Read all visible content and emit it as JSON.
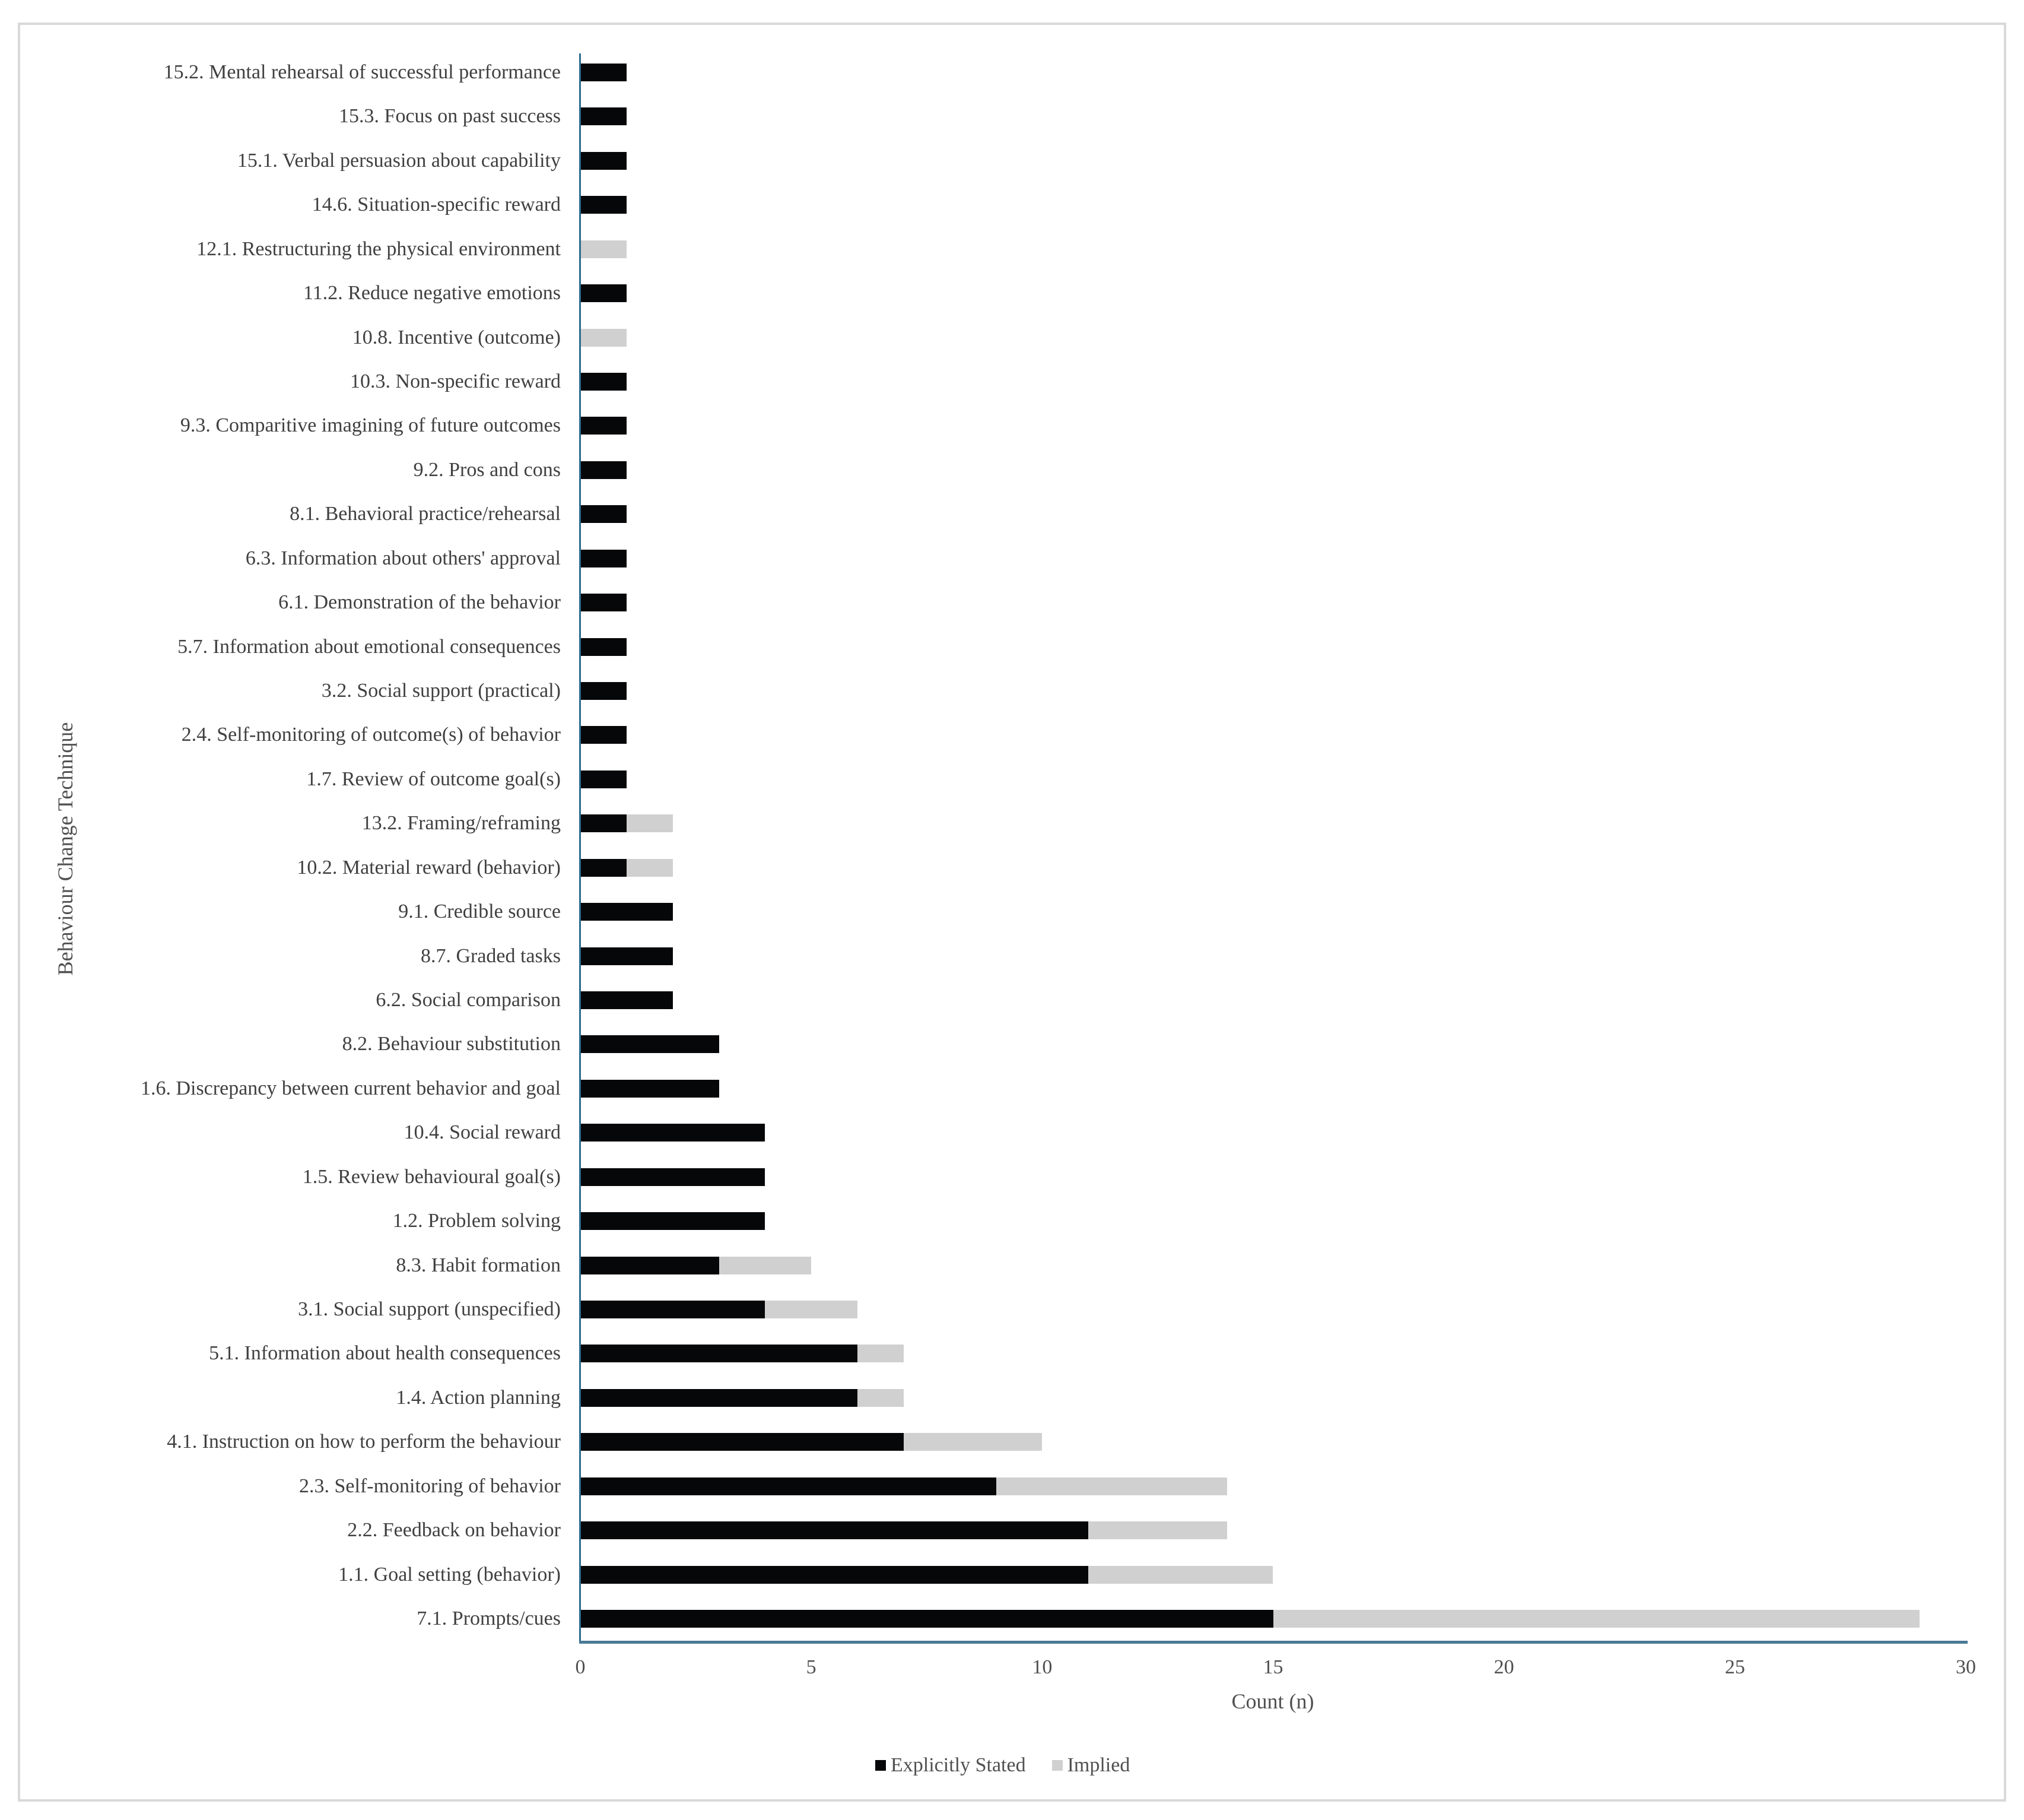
{
  "chart_data": {
    "type": "bar",
    "orientation": "horizontal",
    "stacked": true,
    "title": "",
    "xlabel": "Count (n)",
    "ylabel": "Behaviour Change Technique",
    "xlim": [
      0,
      30
    ],
    "xticks": [
      0,
      5,
      10,
      15,
      20,
      25,
      30
    ],
    "grid": false,
    "legend_position": "bottom",
    "categories": [
      "15.2. Mental rehearsal of successful performance",
      "15.3. Focus on past success",
      "15.1. Verbal persuasion about capability",
      "14.6. Situation-specific reward",
      "12.1. Restructuring the physical environment",
      "11.2. Reduce negative emotions",
      "10.8. Incentive (outcome)",
      "10.3. Non-specific reward",
      "9.3. Comparitive imagining of future outcomes",
      "9.2. Pros and cons",
      "8.1. Behavioral practice/rehearsal",
      "6.3. Information about others' approval",
      "6.1. Demonstration of the behavior",
      "5.7. Information about emotional consequences",
      "3.2. Social support (practical)",
      "2.4. Self-monitoring of outcome(s) of behavior",
      "1.7. Review of outcome goal(s)",
      "13.2. Framing/reframing",
      "10.2. Material reward (behavior)",
      "9.1. Credible source",
      "8.7. Graded tasks",
      "6.2. Social comparison",
      "8.2. Behaviour substitution",
      "1.6. Discrepancy between current behavior and goal",
      "10.4. Social reward",
      "1.5. Review behavioural goal(s)",
      "1.2. Problem solving",
      "8.3. Habit formation",
      "3.1. Social support (unspecified)",
      "5.1. Information about health consequences",
      "1.4. Action planning",
      "4.1. Instruction on how to perform the behaviour",
      "2.3. Self-monitoring of behavior",
      "2.2. Feedback on behavior",
      "1.1. Goal setting (behavior)",
      "7.1. Prompts/cues"
    ],
    "series": [
      {
        "name": "Explicitly Stated",
        "color": "#060708",
        "values": [
          1,
          1,
          1,
          1,
          0,
          1,
          0,
          1,
          1,
          1,
          1,
          1,
          1,
          1,
          1,
          1,
          1,
          1,
          1,
          2,
          2,
          2,
          3,
          3,
          4,
          4,
          4,
          3,
          4,
          6,
          6,
          7,
          9,
          11,
          11,
          15
        ]
      },
      {
        "name": "Implied",
        "color": "#d0d0d0",
        "values": [
          0,
          0,
          0,
          0,
          1,
          0,
          1,
          0,
          0,
          0,
          0,
          0,
          0,
          0,
          0,
          0,
          0,
          1,
          1,
          0,
          0,
          0,
          0,
          0,
          0,
          0,
          0,
          2,
          2,
          1,
          1,
          3,
          5,
          3,
          4,
          14
        ]
      }
    ]
  },
  "axis": {
    "x_title": "Count (n)",
    "y_title": "Behaviour Change Technique",
    "ticks": [
      "0",
      "5",
      "10",
      "15",
      "20",
      "25",
      "30"
    ]
  },
  "legend": {
    "items": [
      {
        "label": "Explicitly Stated",
        "color": "#060708"
      },
      {
        "label": "Implied",
        "color": "#d0d0d0"
      }
    ]
  }
}
